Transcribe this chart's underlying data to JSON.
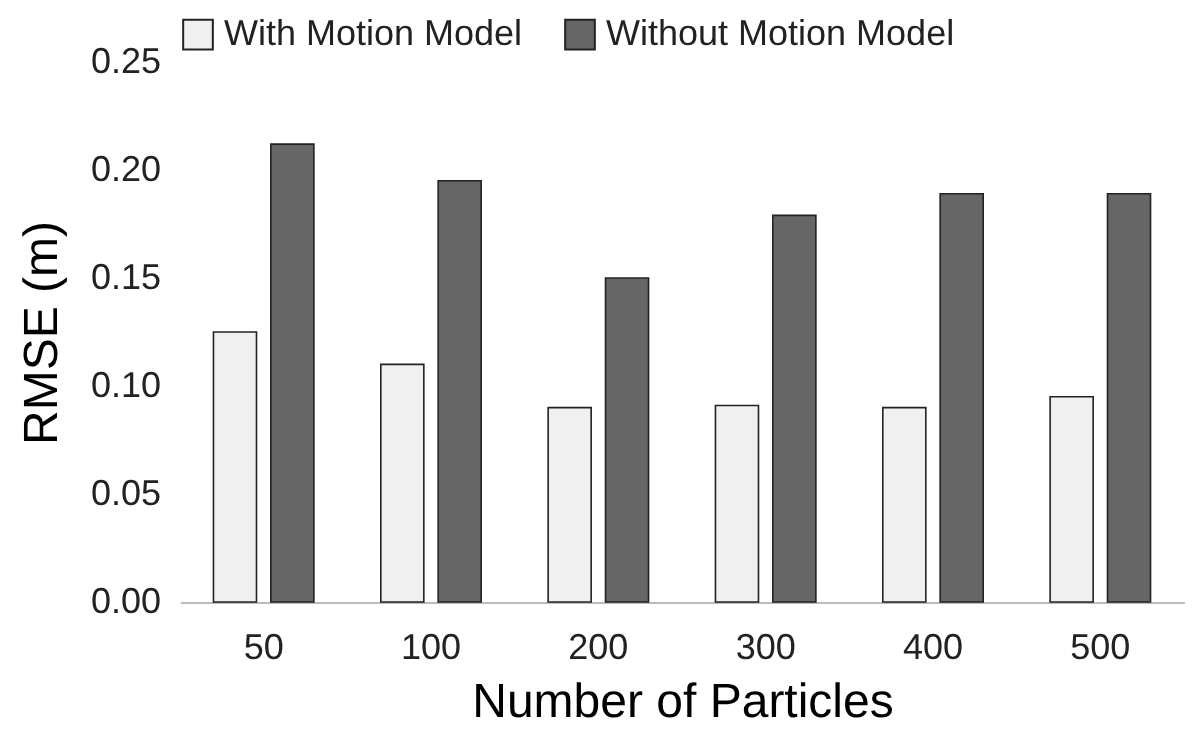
{
  "chart_data": {
    "type": "bar",
    "xlabel": "Number of Particles",
    "ylabel": "RMSE (m)",
    "categories": [
      "50",
      "100",
      "200",
      "300",
      "400",
      "500"
    ],
    "series": [
      {
        "name": "With Motion Model",
        "color": "#f0f0f0",
        "values": [
          0.125,
          0.11,
          0.09,
          0.091,
          0.09,
          0.095
        ]
      },
      {
        "name": "Without Motion Model",
        "color": "#666666",
        "values": [
          0.212,
          0.195,
          0.15,
          0.179,
          0.189,
          0.189
        ]
      }
    ],
    "ylim": [
      0,
      0.25
    ],
    "yticks": [
      {
        "value": 0,
        "label": "0.00"
      },
      {
        "value": 0.05,
        "label": "0.05"
      },
      {
        "value": 0.1,
        "label": "0.10"
      },
      {
        "value": 0.15,
        "label": "0.15"
      },
      {
        "value": 0.2,
        "label": "0.20"
      },
      {
        "value": 0.25,
        "label": "0.25"
      }
    ],
    "grid": false,
    "legend": "top"
  }
}
